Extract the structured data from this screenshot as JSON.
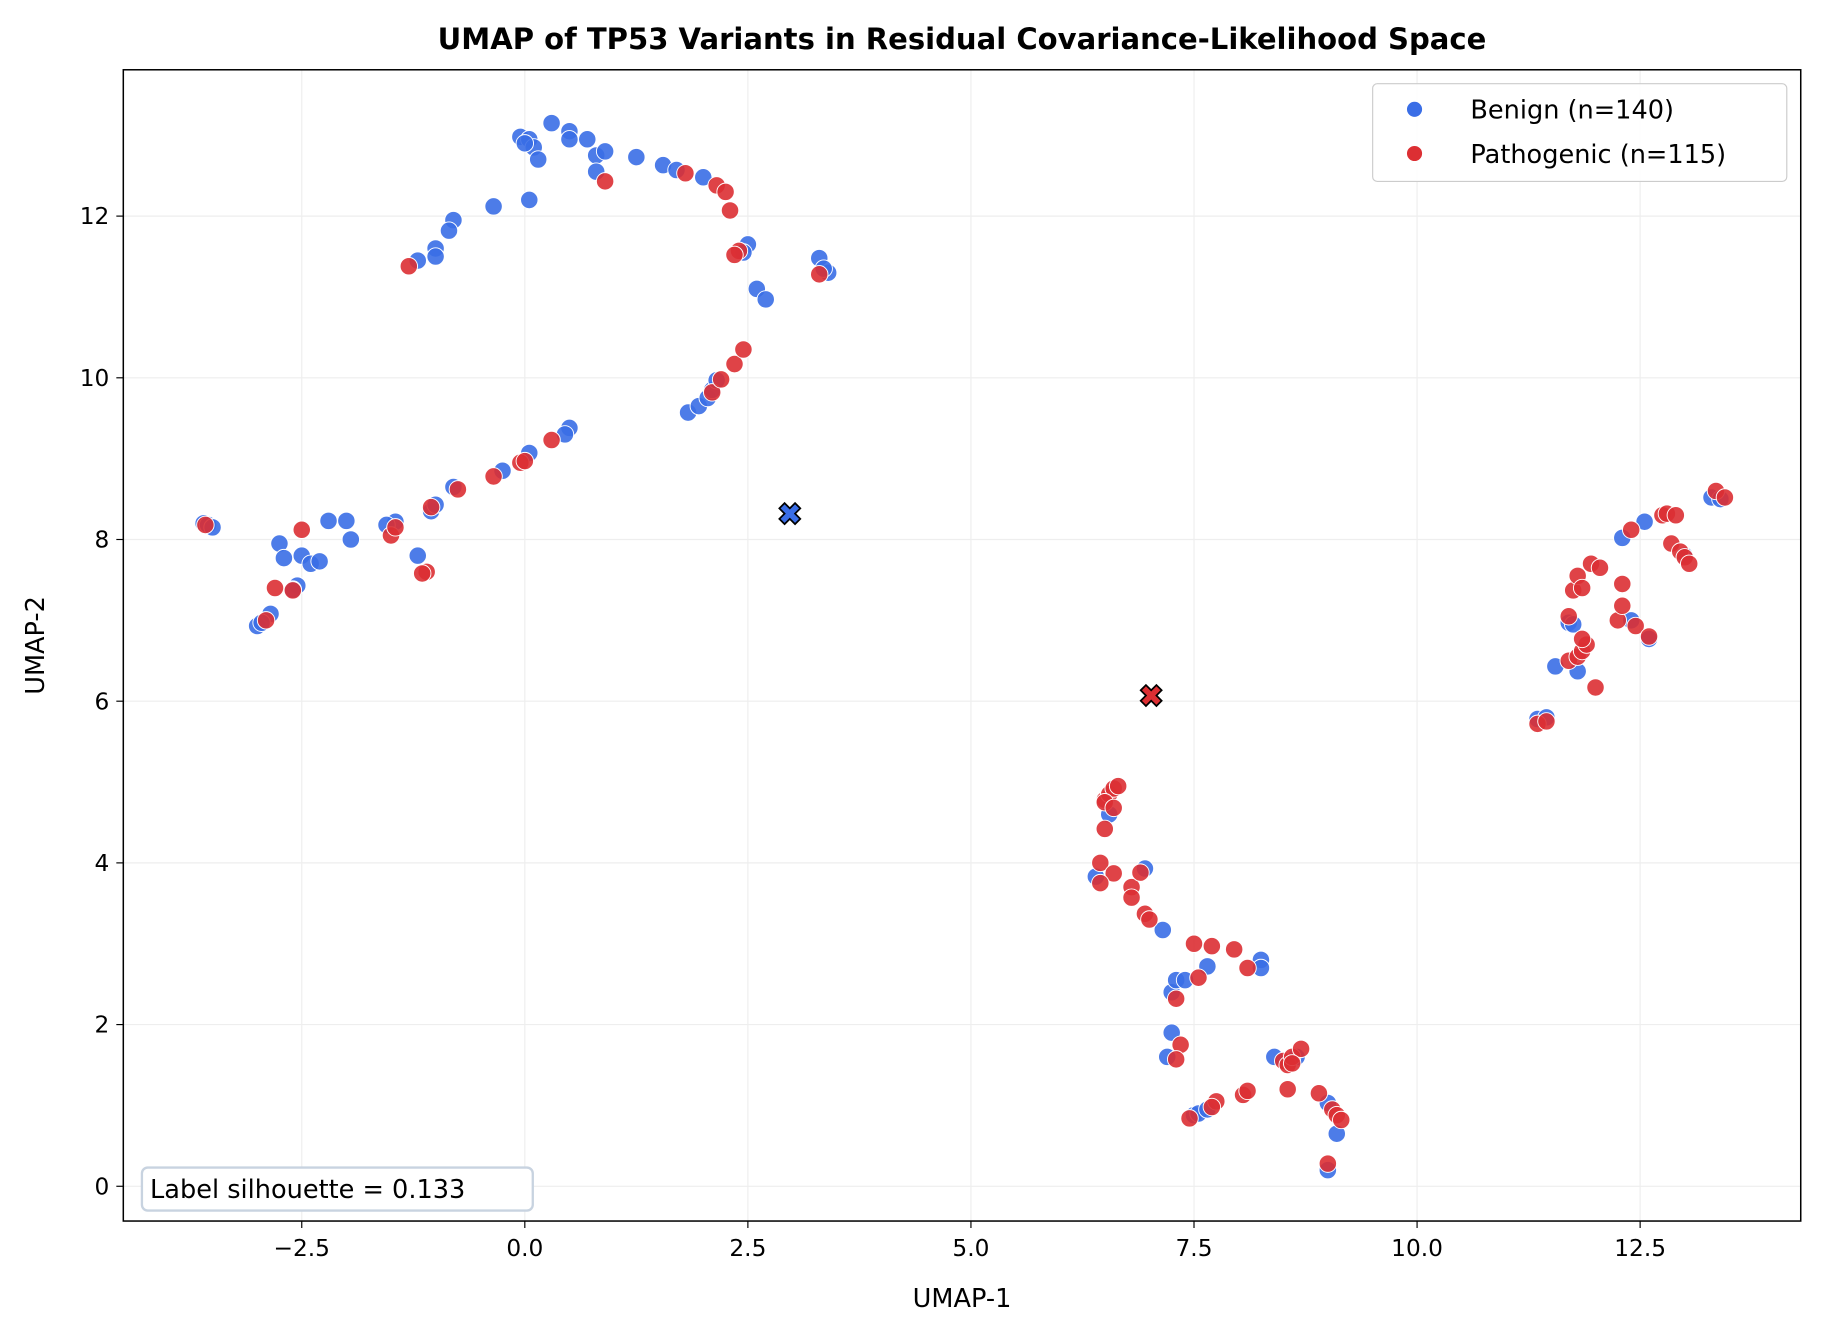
{
  "chart_data": {
    "type": "scatter",
    "title": "UMAP of TP53 Variants in Residual Covariance-Likelihood Space",
    "xlabel": "UMAP-1",
    "ylabel": "UMAP-2",
    "xlim": [
      -4.5,
      14.3
    ],
    "ylim": [
      -0.43,
      13.81
    ],
    "xticks": [
      -2.5,
      0.0,
      2.5,
      5.0,
      7.5,
      10.0,
      12.5
    ],
    "xtick_labels": [
      "−2.5",
      "0.0",
      "2.5",
      "5.0",
      "7.5",
      "10.0",
      "12.5"
    ],
    "yticks": [
      0,
      2,
      4,
      6,
      8,
      10,
      12
    ],
    "ytick_labels": [
      "0",
      "2",
      "4",
      "6",
      "8",
      "10",
      "12"
    ],
    "grid": true,
    "legend_placement": "top-right",
    "annotation": "Label silhouette = 0.133",
    "series": [
      {
        "name": "Benign (n=140)",
        "color": "#3a6ee6",
        "points": [
          [
            -0.05,
            12.98
          ],
          [
            0.05,
            12.95
          ],
          [
            0.1,
            12.85
          ],
          [
            0.15,
            12.7
          ],
          [
            0.0,
            12.9
          ],
          [
            0.3,
            13.15
          ],
          [
            0.5,
            13.05
          ],
          [
            0.5,
            12.95
          ],
          [
            0.7,
            12.95
          ],
          [
            0.8,
            12.75
          ],
          [
            0.9,
            12.8
          ],
          [
            0.8,
            12.55
          ],
          [
            1.25,
            12.73
          ],
          [
            1.55,
            12.63
          ],
          [
            1.7,
            12.57
          ],
          [
            2.0,
            12.48
          ],
          [
            0.05,
            12.2
          ],
          [
            -0.35,
            12.12
          ],
          [
            -0.8,
            11.95
          ],
          [
            -0.85,
            11.82
          ],
          [
            -1.0,
            11.6
          ],
          [
            -1.0,
            11.5
          ],
          [
            -1.2,
            11.45
          ],
          [
            2.5,
            11.65
          ],
          [
            2.45,
            11.55
          ],
          [
            2.6,
            11.1
          ],
          [
            2.7,
            10.97
          ],
          [
            3.3,
            11.48
          ],
          [
            3.4,
            11.3
          ],
          [
            3.35,
            11.35
          ],
          [
            1.83,
            9.57
          ],
          [
            1.95,
            9.65
          ],
          [
            2.05,
            9.75
          ],
          [
            2.1,
            9.85
          ],
          [
            2.15,
            9.97
          ],
          [
            0.5,
            9.38
          ],
          [
            0.45,
            9.3
          ],
          [
            0.05,
            9.07
          ],
          [
            -0.25,
            8.85
          ],
          [
            -0.8,
            8.65
          ],
          [
            -1.05,
            8.35
          ],
          [
            -1.0,
            8.43
          ],
          [
            -1.45,
            8.22
          ],
          [
            -1.55,
            8.18
          ],
          [
            -1.2,
            7.8
          ],
          [
            -1.95,
            8.0
          ],
          [
            -2.2,
            8.23
          ],
          [
            -2.0,
            8.23
          ],
          [
            -2.75,
            7.95
          ],
          [
            -2.7,
            7.77
          ],
          [
            -2.5,
            7.8
          ],
          [
            -2.4,
            7.7
          ],
          [
            -2.3,
            7.73
          ],
          [
            -2.55,
            7.43
          ],
          [
            -2.6,
            7.38
          ],
          [
            -2.85,
            7.08
          ],
          [
            -3.0,
            6.93
          ],
          [
            -2.95,
            6.97
          ],
          [
            -3.6,
            8.2
          ],
          [
            -3.55,
            8.18
          ],
          [
            -3.5,
            8.15
          ],
          [
            6.4,
            3.83
          ],
          [
            6.55,
            4.6
          ],
          [
            6.95,
            3.93
          ],
          [
            7.15,
            3.17
          ],
          [
            7.25,
            2.4
          ],
          [
            7.3,
            2.55
          ],
          [
            7.4,
            2.55
          ],
          [
            7.65,
            2.72
          ],
          [
            8.25,
            2.8
          ],
          [
            8.25,
            2.7
          ],
          [
            7.25,
            1.9
          ],
          [
            7.2,
            1.6
          ],
          [
            7.5,
            0.88
          ],
          [
            7.55,
            0.9
          ],
          [
            7.65,
            0.95
          ],
          [
            8.4,
            1.6
          ],
          [
            8.65,
            1.6
          ],
          [
            9.0,
            1.03
          ],
          [
            9.1,
            0.65
          ],
          [
            9.0,
            0.2
          ],
          [
            11.35,
            5.78
          ],
          [
            11.45,
            5.8
          ],
          [
            11.55,
            6.43
          ],
          [
            11.8,
            6.37
          ],
          [
            11.7,
            6.97
          ],
          [
            11.75,
            6.95
          ],
          [
            12.3,
            8.02
          ],
          [
            12.55,
            8.22
          ],
          [
            12.4,
            7.0
          ],
          [
            12.6,
            6.77
          ],
          [
            13.3,
            8.52
          ],
          [
            13.4,
            8.5
          ],
          [
            13.0,
            7.8
          ]
        ],
        "centroid": [
          2.97,
          8.32
        ]
      },
      {
        "name": "Pathogenic (n=115)",
        "color": "#dc2f33",
        "points": [
          [
            1.8,
            12.53
          ],
          [
            2.15,
            12.38
          ],
          [
            2.25,
            12.3
          ],
          [
            2.3,
            12.07
          ],
          [
            2.4,
            11.57
          ],
          [
            2.35,
            11.52
          ],
          [
            3.3,
            11.28
          ],
          [
            0.9,
            12.43
          ],
          [
            -1.3,
            11.38
          ],
          [
            2.1,
            9.82
          ],
          [
            2.2,
            9.98
          ],
          [
            2.35,
            10.17
          ],
          [
            2.45,
            10.35
          ],
          [
            0.3,
            9.23
          ],
          [
            -0.05,
            8.95
          ],
          [
            0.0,
            8.97
          ],
          [
            -0.35,
            8.78
          ],
          [
            -0.75,
            8.62
          ],
          [
            -1.05,
            8.4
          ],
          [
            -1.5,
            8.05
          ],
          [
            -1.45,
            8.15
          ],
          [
            -1.1,
            7.6
          ],
          [
            -1.15,
            7.58
          ],
          [
            -2.5,
            8.12
          ],
          [
            -2.8,
            7.4
          ],
          [
            -2.6,
            7.37
          ],
          [
            -2.9,
            7.0
          ],
          [
            -3.58,
            8.18
          ],
          [
            6.5,
            4.78
          ],
          [
            6.55,
            4.85
          ],
          [
            6.6,
            4.92
          ],
          [
            6.65,
            4.95
          ],
          [
            6.5,
            4.75
          ],
          [
            6.6,
            4.68
          ],
          [
            6.5,
            4.42
          ],
          [
            6.45,
            4.0
          ],
          [
            6.6,
            3.87
          ],
          [
            6.45,
            3.75
          ],
          [
            6.8,
            3.7
          ],
          [
            6.8,
            3.57
          ],
          [
            6.9,
            3.88
          ],
          [
            6.95,
            3.37
          ],
          [
            7.0,
            3.3
          ],
          [
            7.5,
            3.0
          ],
          [
            7.7,
            2.97
          ],
          [
            7.95,
            2.93
          ],
          [
            8.1,
            2.7
          ],
          [
            7.55,
            2.58
          ],
          [
            7.3,
            2.32
          ],
          [
            7.35,
            1.75
          ],
          [
            7.3,
            1.57
          ],
          [
            7.75,
            1.05
          ],
          [
            7.7,
            0.98
          ],
          [
            7.45,
            0.84
          ],
          [
            8.05,
            1.13
          ],
          [
            8.1,
            1.18
          ],
          [
            8.5,
            1.55
          ],
          [
            8.55,
            1.5
          ],
          [
            8.6,
            1.6
          ],
          [
            8.7,
            1.7
          ],
          [
            8.6,
            1.52
          ],
          [
            8.55,
            1.2
          ],
          [
            8.9,
            1.15
          ],
          [
            9.05,
            0.95
          ],
          [
            9.1,
            0.88
          ],
          [
            9.15,
            0.82
          ],
          [
            9.0,
            0.28
          ],
          [
            11.35,
            5.72
          ],
          [
            11.45,
            5.75
          ],
          [
            12.0,
            6.17
          ],
          [
            11.7,
            6.5
          ],
          [
            11.8,
            6.55
          ],
          [
            11.85,
            6.62
          ],
          [
            11.9,
            6.7
          ],
          [
            11.85,
            6.77
          ],
          [
            11.7,
            7.05
          ],
          [
            11.75,
            7.37
          ],
          [
            11.8,
            7.55
          ],
          [
            11.85,
            7.4
          ],
          [
            11.95,
            7.7
          ],
          [
            12.05,
            7.65
          ],
          [
            12.25,
            7.0
          ],
          [
            12.3,
            7.45
          ],
          [
            12.3,
            7.18
          ],
          [
            12.45,
            6.93
          ],
          [
            12.6,
            6.8
          ],
          [
            12.4,
            8.12
          ],
          [
            12.75,
            8.3
          ],
          [
            12.8,
            8.32
          ],
          [
            12.9,
            8.3
          ],
          [
            12.85,
            7.95
          ],
          [
            12.95,
            7.85
          ],
          [
            13.0,
            7.78
          ],
          [
            13.05,
            7.7
          ],
          [
            13.35,
            8.6
          ],
          [
            13.45,
            8.52
          ]
        ],
        "centroid": [
          7.02,
          6.07
        ]
      }
    ]
  }
}
